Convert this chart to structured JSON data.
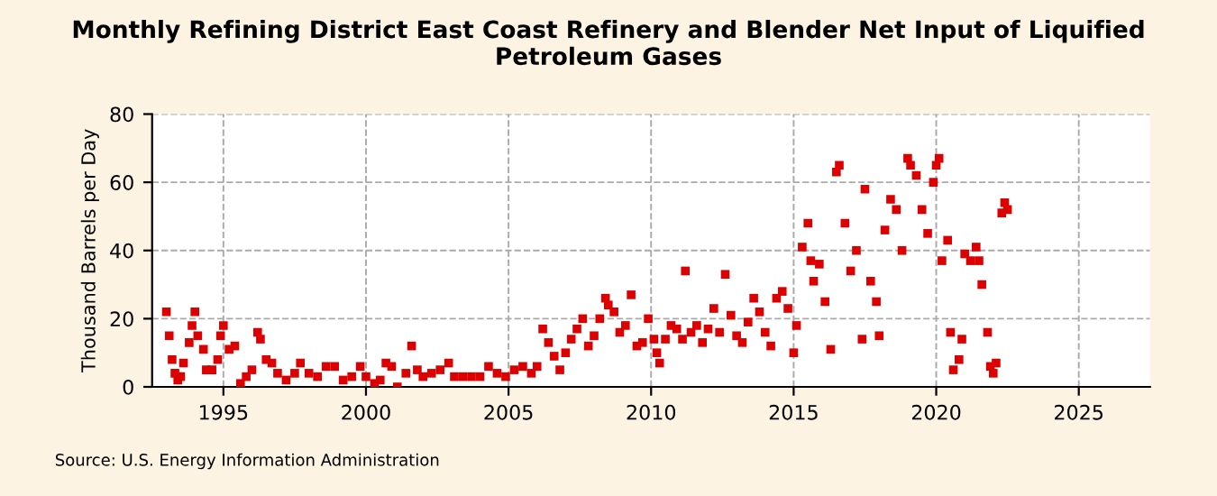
{
  "chart_data": {
    "type": "scatter",
    "title": "Monthly Refining District East Coast Refinery and Blender Net Input of Liquified Petroleum Gases",
    "ylabel": "Thousand Barrels per Day",
    "annotations": [
      "Source: U.S. Energy Information Administration"
    ],
    "x": [
      1993.0,
      1993.1,
      1993.2,
      1993.3,
      1993.4,
      1993.5,
      1993.6,
      1993.8,
      1993.9,
      1994.0,
      1994.1,
      1994.3,
      1994.4,
      1994.6,
      1994.8,
      1994.9,
      1995.0,
      1995.2,
      1995.4,
      1995.6,
      1995.8,
      1996.0,
      1996.2,
      1996.3,
      1996.5,
      1996.7,
      1996.9,
      1997.2,
      1997.5,
      1997.7,
      1998.0,
      1998.3,
      1998.6,
      1998.9,
      1999.2,
      1999.5,
      1999.8,
      2000.0,
      2000.3,
      2000.5,
      2000.7,
      2000.9,
      2001.1,
      2001.4,
      2001.6,
      2001.8,
      2002.0,
      2002.3,
      2002.6,
      2002.9,
      2003.1,
      2003.4,
      2003.7,
      2004.0,
      2004.3,
      2004.6,
      2004.9,
      2005.2,
      2005.5,
      2005.8,
      2006.0,
      2006.2,
      2006.4,
      2006.6,
      2006.8,
      2007.0,
      2007.2,
      2007.4,
      2007.6,
      2007.8,
      2008.0,
      2008.2,
      2008.4,
      2008.5,
      2008.7,
      2008.9,
      2009.1,
      2009.3,
      2009.5,
      2009.7,
      2009.9,
      2010.1,
      2010.2,
      2010.3,
      2010.5,
      2010.7,
      2010.9,
      2011.1,
      2011.2,
      2011.4,
      2011.6,
      2011.8,
      2012.0,
      2012.2,
      2012.4,
      2012.6,
      2012.8,
      2013.0,
      2013.2,
      2013.4,
      2013.6,
      2013.8,
      2014.0,
      2014.2,
      2014.4,
      2014.6,
      2014.8,
      2015.0,
      2015.1,
      2015.3,
      2015.5,
      2015.6,
      2015.7,
      2015.9,
      2016.1,
      2016.3,
      2016.5,
      2016.6,
      2016.8,
      2017.0,
      2017.2,
      2017.4,
      2017.5,
      2017.7,
      2017.9,
      2018.0,
      2018.2,
      2018.4,
      2018.6,
      2018.8,
      2019.0,
      2019.1,
      2019.3,
      2019.5,
      2019.7,
      2019.9,
      2020.0,
      2020.1,
      2020.2,
      2020.4,
      2020.5,
      2020.6,
      2020.8,
      2020.9,
      2021.0,
      2021.2,
      2021.4,
      2021.5,
      2021.6,
      2021.8,
      2021.9,
      2022.0,
      2022.1,
      2022.3,
      2022.4,
      2022.5
    ],
    "series": [
      {
        "color": "#dd0000",
        "values": [
          22,
          15,
          8,
          4,
          2,
          3,
          7,
          13,
          18,
          22,
          15,
          11,
          5,
          5,
          8,
          15,
          18,
          11,
          12,
          1,
          3,
          5,
          16,
          14,
          8,
          7,
          4,
          2,
          4,
          7,
          4,
          3,
          6,
          6,
          2,
          3,
          6,
          3,
          1,
          2,
          7,
          6,
          0,
          4,
          12,
          5,
          3,
          4,
          5,
          7,
          3,
          3,
          3,
          3,
          6,
          4,
          3,
          5,
          6,
          4,
          6,
          17,
          13,
          9,
          5,
          10,
          14,
          17,
          20,
          12,
          15,
          20,
          26,
          24,
          22,
          16,
          18,
          27,
          12,
          13,
          20,
          14,
          10,
          7,
          14,
          18,
          17,
          14,
          34,
          16,
          18,
          13,
          17,
          23,
          16,
          33,
          21,
          15,
          13,
          19,
          26,
          22,
          16,
          12,
          26,
          28,
          23,
          10,
          18,
          41,
          48,
          37,
          31,
          36,
          25,
          11,
          63,
          65,
          48,
          34,
          40,
          14,
          58,
          31,
          25,
          15,
          46,
          55,
          52,
          40,
          67,
          65,
          62,
          52,
          45,
          60,
          65,
          67,
          37,
          43,
          16,
          5,
          8,
          14,
          39,
          37,
          41,
          37,
          30,
          16,
          6,
          4,
          7,
          51,
          54,
          52
        ]
      }
    ],
    "xlim": [
      1992.5,
      2027.5
    ],
    "xticks": [
      1995,
      2000,
      2005,
      2010,
      2015,
      2020,
      2025
    ],
    "ylim": [
      0,
      80
    ],
    "yticks": [
      0,
      20,
      40,
      60,
      80
    ],
    "grid": true,
    "marker": "square",
    "legend": false
  }
}
